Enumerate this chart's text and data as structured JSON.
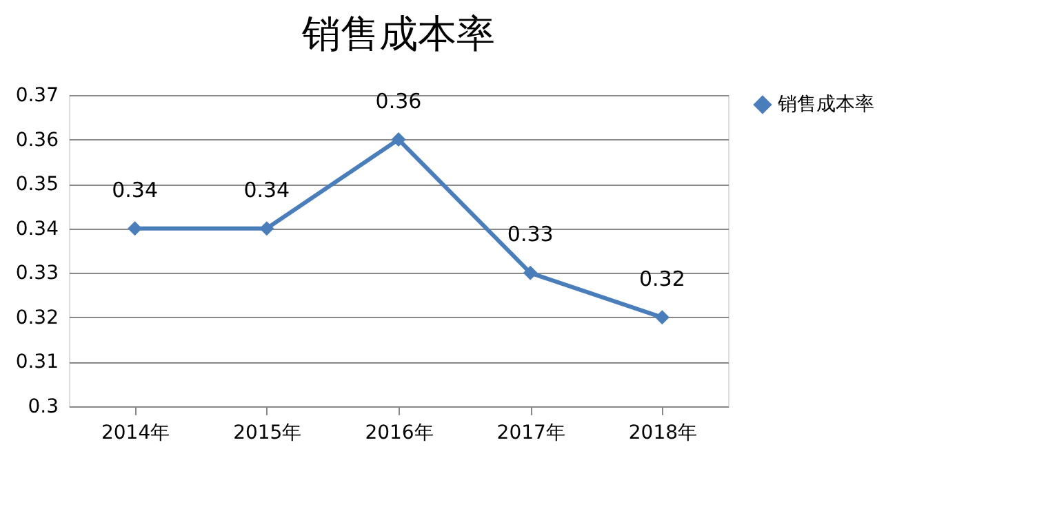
{
  "chart_data": {
    "type": "line",
    "title": "销售成本率",
    "categories": [
      "2014年",
      "2015年",
      "2016年",
      "2017年",
      "2018年"
    ],
    "series": [
      {
        "name": "销售成本率",
        "color": "#4a7ebb",
        "values": [
          0.34,
          0.34,
          0.36,
          0.33,
          0.32
        ]
      }
    ],
    "ylim": [
      0.3,
      0.37
    ],
    "yticks": [
      0.3,
      0.31,
      0.32,
      0.33,
      0.34,
      0.35,
      0.36,
      0.37
    ],
    "grid": "y",
    "legend": "right",
    "marker": "diamond",
    "line_style": "solid",
    "data_labels": true
  }
}
